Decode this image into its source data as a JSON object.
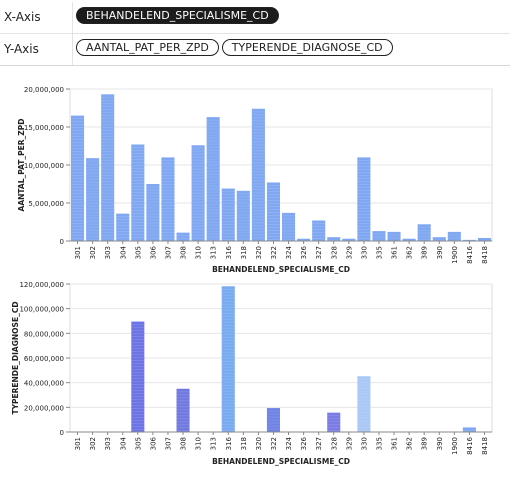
{
  "shelves": {
    "x_label": "X-Axis",
    "y_label": "Y-Axis",
    "x_fields": [
      "BEHANDELEND_SPECIALISME_CD"
    ],
    "y_fields": [
      "AANTAL_PAT_PER_ZPD",
      "TYPERENDE_DIAGNOSE_CD"
    ],
    "active_color": "#1c1c1c"
  },
  "chart_data": [
    {
      "type": "bar",
      "categories": [
        "301",
        "302",
        "303",
        "304",
        "305",
        "306",
        "307",
        "308",
        "310",
        "313",
        "316",
        "318",
        "320",
        "322",
        "324",
        "326",
        "327",
        "328",
        "329",
        "330",
        "335",
        "361",
        "362",
        "389",
        "390",
        "1900",
        "8416",
        "8418"
      ],
      "values": [
        16500000,
        10900000,
        19300000,
        3600000,
        12700000,
        7500000,
        11000000,
        1100000,
        12600000,
        16300000,
        6900000,
        6600000,
        17400000,
        7700000,
        3700000,
        300000,
        2700000,
        500000,
        300000,
        11000000,
        1300000,
        1200000,
        300000,
        2200000,
        500000,
        1200000,
        150000,
        400000
      ],
      "xlabel": "BEHANDELEND_SPECIALISME_CD",
      "ylabel": "AANTAL_PAT_PER_ZPD",
      "ylim": [
        0,
        20000000
      ],
      "yticks": [
        "0",
        "5,000,000",
        "10,000,000",
        "15,000,000",
        "20,000,000"
      ],
      "grid": true,
      "colors": [
        "#7fa7f2"
      ]
    },
    {
      "type": "bar",
      "categories": [
        "301",
        "302",
        "303",
        "304",
        "305",
        "306",
        "307",
        "308",
        "310",
        "313",
        "316",
        "318",
        "320",
        "322",
        "324",
        "326",
        "327",
        "328",
        "329",
        "330",
        "335",
        "361",
        "362",
        "389",
        "390",
        "1900",
        "8416",
        "8418"
      ],
      "values": [
        0,
        0,
        0,
        0,
        97000000,
        0,
        0,
        38000000,
        0,
        0,
        128000000,
        0,
        0,
        21000000,
        0,
        0,
        0,
        17000000,
        0,
        49000000,
        0,
        0,
        0,
        0,
        0,
        0,
        4000000,
        0
      ],
      "xlabel": "BEHANDELEND_SPECIALISME_CD",
      "ylabel": "TYPERENDE_DIAGNOSE_CD",
      "ylim": [
        0,
        130000000
      ],
      "yticks": [
        "0",
        "20,000,000",
        "40,000,000",
        "60,000,000",
        "80,000,000",
        "100,000,000",
        "120,000,000"
      ],
      "grid": true,
      "colors": [
        "#6b73e6",
        "#7178e0",
        "#78aaf0",
        "#6f82e6",
        "#7a7be4",
        "#a9c8f6",
        "#7fa7f2"
      ]
    }
  ]
}
